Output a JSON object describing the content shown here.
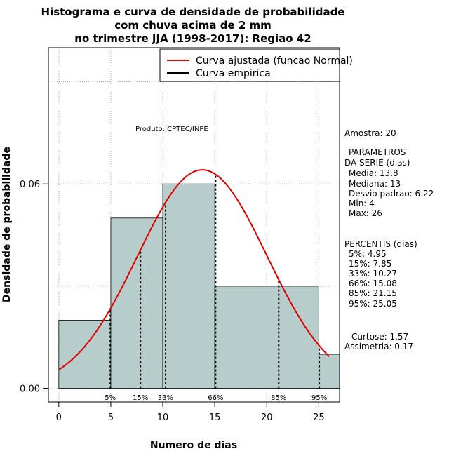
{
  "chart_data": {
    "type": "bar",
    "title_lines": [
      "Histograma e curva de densidade de probabilidade",
      "com chuva acima de 2 mm",
      "no trimestre JJA (1998-2017): Regiao 42"
    ],
    "xlabel": "Numero de dias",
    "ylabel": "Densidade de probabilidade",
    "xlim": [
      -1,
      27
    ],
    "ylim": [
      -0.004,
      0.1
    ],
    "x_ticks": [
      0,
      5,
      10,
      15,
      20,
      25
    ],
    "y_ticks": [
      0.0,
      0.06
    ],
    "y_tick_labels": [
      "0.00",
      "0.06"
    ],
    "bins": [
      {
        "from": 0,
        "to": 5,
        "density": 0.02
      },
      {
        "from": 5,
        "to": 10,
        "density": 0.05
      },
      {
        "from": 10,
        "to": 15,
        "density": 0.06
      },
      {
        "from": 15,
        "to": 25,
        "density": 0.03
      },
      {
        "from": 25,
        "to": 27,
        "density": 0.01
      }
    ],
    "normal_fit": {
      "mean": 13.8,
      "sd": 6.22,
      "x_from": 0,
      "x_to": 26
    },
    "percentile_lines": [
      {
        "label": "5%",
        "x": 4.95
      },
      {
        "label": "15%",
        "x": 7.85
      },
      {
        "label": "33%",
        "x": 10.27
      },
      {
        "label": "66%",
        "x": 15.08
      },
      {
        "label": "85%",
        "x": 21.15
      },
      {
        "label": "95%",
        "x": 25.05
      }
    ],
    "legend": {
      "position": "top-right",
      "entries": [
        {
          "label": "Curva ajustada (funcao Normal)",
          "color": "#e00000"
        },
        {
          "label": "Curva empirica",
          "color": "#000000"
        }
      ]
    },
    "annotation": "Produto: CPTEC/INPE",
    "grid": true,
    "colors": {
      "bar_fill": "#b7cdcc",
      "curve": "#e00000",
      "grid": "#b0b0b0"
    }
  },
  "stats": {
    "amostra": "Amostra: 20",
    "param_title_1": "PARAMETROS",
    "param_title_2": "DA SERIE (dias)",
    "media": "Media: 13.8",
    "mediana": "Mediana: 13",
    "desvio": "Desvio padrao: 6.22",
    "min": "Min: 4",
    "max": "Max: 26",
    "perc_title": "PERCENTIS (dias)",
    "p5": "5%: 4.95",
    "p15": "15%: 7.85",
    "p33": "33%: 10.27",
    "p66": "66%: 15.08",
    "p85": "85%: 21.15",
    "p95": "95%: 25.05",
    "curtose": "Curtose: 1.57",
    "assimetria": "Assimetria: 0.17"
  }
}
